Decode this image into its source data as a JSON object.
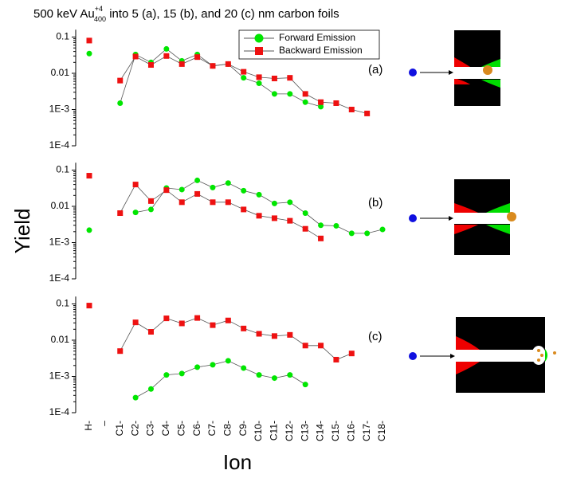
{
  "title": {
    "prefix": "500 keV Au",
    "superscript": "+4",
    "subscript": "400",
    "suffix": " into 5 (a), 15 (b), and 20 (c) nm carbon foils"
  },
  "ylabel": "Yield",
  "xlabel": "Ion",
  "chart_data": [
    {
      "type": "line",
      "annotation": "(a)",
      "log_y": true,
      "legend": "upper center",
      "ylim": [
        0.0001,
        0.16
      ],
      "yticks": [
        0.1,
        0.01,
        {
          "value": 0.001,
          "label": "1E-3"
        },
        {
          "value": 0.0001,
          "label": "1E-4"
        }
      ],
      "series": [
        {
          "name": "Forward Emission",
          "color": "#00e600",
          "marker": "circle",
          "values": [
            0.035,
            null,
            0.0015,
            0.033,
            0.02,
            0.047,
            0.022,
            0.033,
            0.016,
            0.018,
            0.0075,
            0.0053,
            0.0027,
            0.0027,
            0.0016,
            0.0012,
            null,
            null,
            null,
            null
          ]
        },
        {
          "name": "Backward Emission",
          "color": "#ee1111",
          "marker": "square",
          "values": [
            0.08,
            null,
            0.0063,
            0.029,
            0.017,
            0.03,
            0.018,
            0.028,
            0.016,
            0.018,
            0.011,
            0.0078,
            0.0072,
            0.0075,
            0.0027,
            0.0016,
            0.0015,
            0.001,
            0.00078,
            null
          ]
        }
      ]
    },
    {
      "type": "line",
      "annotation": "(b)",
      "log_y": true,
      "ylim": [
        0.0001,
        0.16
      ],
      "yticks": [
        0.1,
        0.01,
        {
          "value": 0.001,
          "label": "1E-3"
        },
        {
          "value": 0.0001,
          "label": "1E-4"
        }
      ],
      "series": [
        {
          "color": "#00e600",
          "marker": "circle",
          "values": [
            0.0022,
            null,
            null,
            0.0068,
            0.0082,
            0.032,
            0.029,
            0.052,
            0.033,
            0.044,
            0.027,
            0.021,
            0.012,
            0.013,
            0.0065,
            0.003,
            0.0029,
            0.0018,
            0.0018,
            0.0023
          ]
        },
        {
          "color": "#ee1111",
          "marker": "square",
          "values": [
            0.07,
            null,
            0.0065,
            0.04,
            0.014,
            0.028,
            0.013,
            0.022,
            0.013,
            0.013,
            0.0082,
            0.0055,
            0.0047,
            0.004,
            0.0024,
            0.0013,
            null,
            null,
            null,
            null
          ]
        }
      ]
    },
    {
      "type": "line",
      "annotation": "(c)",
      "log_y": true,
      "ylim": [
        0.0001,
        0.16
      ],
      "yticks": [
        0.1,
        0.01,
        {
          "value": 0.001,
          "label": "1E-3"
        },
        {
          "value": 0.0001,
          "label": "1E-4"
        }
      ],
      "categories": [
        "H-",
        "–",
        "C1-",
        "C2-",
        "C3-",
        "C4-",
        "C5-",
        "C6-",
        "C7-",
        "C8-",
        "C9-",
        "C10-",
        "C11-",
        "C12-",
        "C13-",
        "C14-",
        "C15-",
        "C16-",
        "C17-",
        "C18-"
      ],
      "series": [
        {
          "color": "#00e600",
          "marker": "circle",
          "values": [
            null,
            null,
            null,
            0.00026,
            0.00045,
            0.0011,
            0.0012,
            0.0018,
            0.0021,
            0.0027,
            0.0017,
            0.0011,
            0.0009,
            0.0011,
            0.0006,
            null,
            null,
            null,
            null,
            null
          ]
        },
        {
          "color": "#ee1111",
          "marker": "square",
          "values": [
            0.09,
            null,
            0.005,
            0.031,
            0.017,
            0.04,
            0.029,
            0.041,
            0.026,
            0.035,
            0.021,
            0.015,
            0.013,
            0.014,
            0.0071,
            0.0071,
            0.0029,
            0.0043,
            null,
            null
          ]
        }
      ]
    }
  ]
}
